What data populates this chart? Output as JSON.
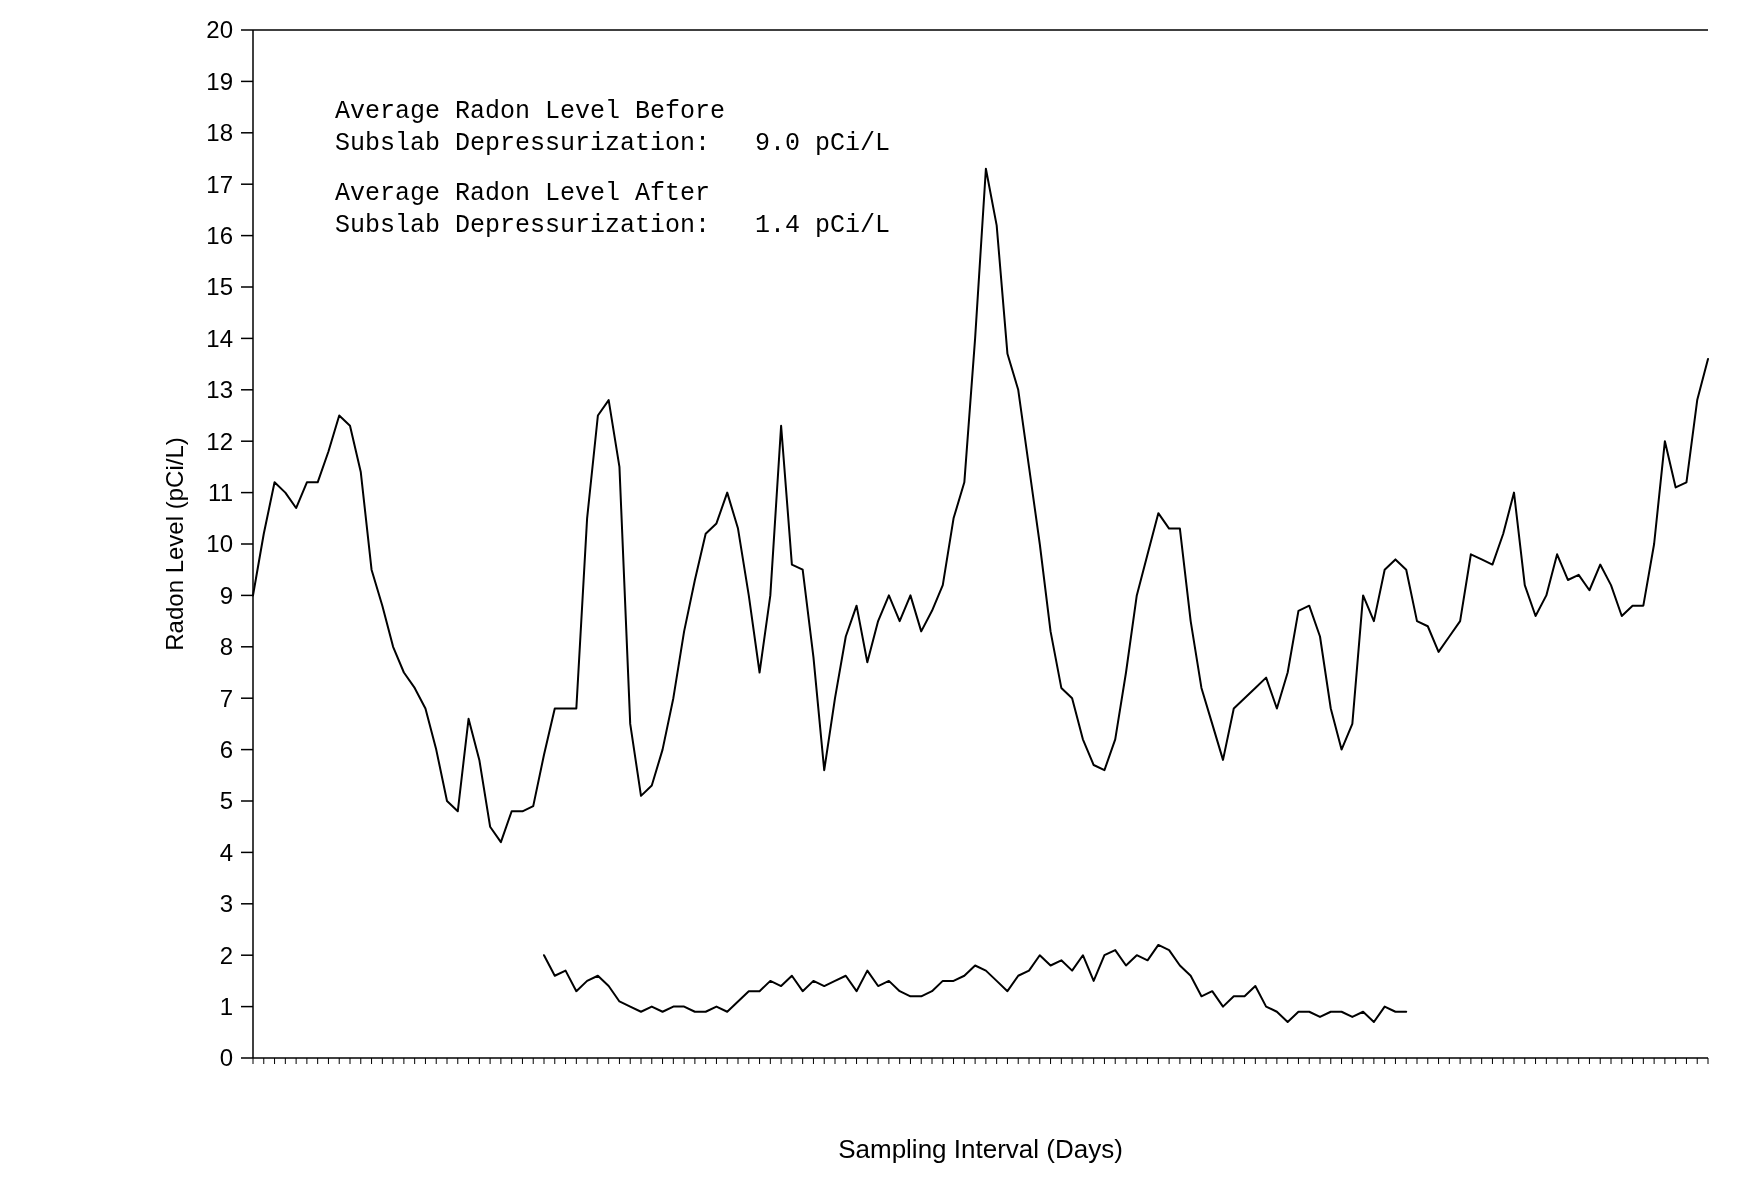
{
  "chart_data": {
    "type": "line",
    "xlabel": "Sampling Interval (Days)",
    "ylabel": "Radon Level (pCi/L)",
    "annotations": [
      "Average Radon Level Before\nSubslab Depressurization:   9.0 pCi/L",
      "Average Radon Level After\nSubslab Depressurization:   1.4 pCi/L"
    ],
    "categories": [
      null,
      null,
      null,
      null,
      null,
      null,
      null,
      null,
      null,
      null,
      null,
      null,
      null,
      null,
      null,
      null,
      null,
      null,
      null,
      null,
      null,
      null,
      null,
      null,
      null,
      null,
      null,
      null,
      null,
      null,
      null,
      null,
      null,
      null,
      null,
      null,
      null,
      null,
      null,
      null,
      null,
      null,
      null,
      null,
      null,
      null,
      null,
      null,
      null,
      null,
      null,
      null,
      null,
      null,
      null,
      null,
      null,
      null,
      null,
      null,
      null,
      null,
      null,
      null,
      null,
      null,
      null,
      null,
      null,
      null,
      null,
      null,
      null,
      null,
      null,
      null,
      null,
      null,
      null,
      null,
      null,
      null,
      null,
      null,
      null,
      null,
      null,
      null,
      null,
      null,
      null,
      null,
      null,
      null,
      null,
      null,
      null,
      null,
      null,
      null,
      null,
      null,
      null,
      null,
      null,
      null,
      null,
      null,
      null,
      null,
      null,
      null,
      null,
      null,
      null,
      null,
      null,
      null,
      null,
      null,
      null,
      null,
      null,
      null,
      null,
      null,
      null,
      null,
      null,
      null,
      null,
      null,
      null,
      null,
      null,
      null
    ],
    "series": [
      {
        "color": "#000000",
        "values": [
          9.0,
          10.2,
          11.2,
          11.0,
          10.7,
          11.2,
          11.2,
          11.8,
          12.5,
          12.3,
          11.4,
          9.5,
          8.8,
          8.0,
          7.5,
          7.2,
          6.8,
          6.0,
          5.0,
          4.8,
          6.6,
          5.8,
          4.5,
          4.2,
          4.8,
          4.8,
          4.9,
          5.9,
          6.8,
          6.8,
          6.8,
          10.5,
          12.5,
          12.8,
          11.5,
          6.5,
          5.1,
          5.3,
          6.0,
          7.0,
          8.3,
          9.3,
          10.2,
          10.4,
          11.0,
          10.3,
          9.0,
          7.5,
          9.0,
          12.3,
          9.6,
          9.5,
          7.8,
          5.6,
          7.0,
          8.2,
          8.8,
          7.7,
          8.5,
          9.0,
          8.5,
          9.0,
          8.3,
          8.7,
          9.2,
          10.5,
          11.2,
          14.0,
          17.3,
          16.2,
          13.7,
          13.0,
          11.5,
          10.0,
          8.3,
          7.2,
          7.0,
          6.2,
          5.7,
          5.6,
          6.2,
          7.5,
          9.0,
          9.8,
          10.6,
          10.3,
          10.3,
          8.5,
          7.2,
          6.5,
          5.8,
          6.8,
          7.0,
          7.2,
          7.4,
          6.8,
          7.5,
          8.7,
          8.8,
          8.2,
          6.8,
          6.0,
          6.5,
          9.0,
          8.5,
          9.5,
          9.7,
          9.5,
          8.5,
          8.4,
          7.9,
          8.2,
          8.5,
          9.8,
          9.7,
          9.6,
          10.2,
          11.0,
          9.2,
          8.6,
          9.0,
          9.8,
          9.3,
          9.4,
          9.1,
          9.6,
          9.2,
          8.6,
          8.8,
          8.8,
          10.0,
          12.0,
          11.1,
          11.2,
          12.8,
          13.6
        ]
      },
      {
        "color": "#000000",
        "values": [
          null,
          null,
          null,
          null,
          null,
          null,
          null,
          null,
          null,
          null,
          null,
          null,
          null,
          null,
          null,
          null,
          null,
          null,
          null,
          null,
          null,
          null,
          null,
          null,
          null,
          null,
          null,
          2.0,
          1.6,
          1.7,
          1.3,
          1.5,
          1.6,
          1.4,
          1.1,
          1.0,
          0.9,
          1.0,
          0.9,
          1.0,
          1.0,
          0.9,
          0.9,
          1.0,
          0.9,
          1.1,
          1.3,
          1.3,
          1.5,
          1.4,
          1.6,
          1.3,
          1.5,
          1.4,
          1.5,
          1.6,
          1.3,
          1.7,
          1.4,
          1.5,
          1.3,
          1.2,
          1.2,
          1.3,
          1.5,
          1.5,
          1.6,
          1.8,
          1.7,
          1.5,
          1.3,
          1.6,
          1.7,
          2.0,
          1.8,
          1.9,
          1.7,
          2.0,
          1.5,
          2.0,
          2.1,
          1.8,
          2.0,
          1.9,
          2.2,
          2.1,
          1.8,
          1.6,
          1.2,
          1.3,
          1.0,
          1.2,
          1.2,
          1.4,
          1.0,
          0.9,
          0.7,
          0.9,
          0.9,
          0.8,
          0.9,
          0.9,
          0.8,
          0.9,
          0.7,
          1.0,
          0.9,
          0.9,
          null,
          null,
          null,
          null,
          null,
          null,
          null,
          null,
          null,
          null,
          null,
          null,
          null,
          null,
          null,
          null,
          null,
          null,
          null,
          null,
          null,
          null,
          null,
          null,
          null,
          null,
          null,
          null
        ]
      }
    ],
    "ylim": [
      0,
      20
    ],
    "yticks": [
      0,
      1,
      2,
      3,
      4,
      5,
      6,
      7,
      8,
      9,
      10,
      11,
      12,
      13,
      14,
      15,
      16,
      17,
      18,
      19,
      20
    ],
    "tick_labels": "y",
    "grid": false,
    "line_style": "solid"
  }
}
